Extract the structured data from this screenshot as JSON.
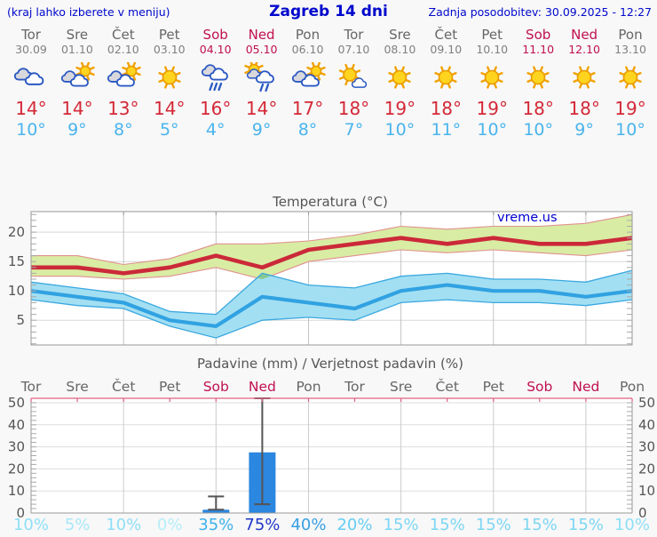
{
  "header": {
    "left_note": "(kraj lahko izberete v meniju)",
    "title": "Zagreb 14 dni",
    "updated": "Zadnja posodobitev: 30.09.2025 - 12:27"
  },
  "watermark": "vreme.us",
  "colors": {
    "header_text": "#0008cc",
    "weekday_text": "#666666",
    "weekend_text": "#c01050",
    "high_temp": "#d42837",
    "low_temp": "#4ab4ec",
    "max_line": "#cb2939",
    "min_line": "#31a2e2",
    "max_band": "#d9eca3",
    "max_band_edge": "#e09090",
    "min_band": "#a3dff2",
    "min_band_edge": "#3aa8e0",
    "band_overlap": "#85ca90",
    "bar": "#2b87e0",
    "whisker": "#555555",
    "top_border_pink": "#e0607f"
  },
  "days": [
    {
      "name": "Tor",
      "date": "30.09",
      "weekend": false,
      "icon": "cloudy",
      "high": 14,
      "low": 10
    },
    {
      "name": "Sre",
      "date": "01.10",
      "weekend": false,
      "icon": "sun-cloud",
      "high": 14,
      "low": 9
    },
    {
      "name": "Čet",
      "date": "02.10",
      "weekend": false,
      "icon": "sun-cloud",
      "high": 13,
      "low": 8
    },
    {
      "name": "Pet",
      "date": "03.10",
      "weekend": false,
      "icon": "sun",
      "high": 14,
      "low": 5
    },
    {
      "name": "Sob",
      "date": "04.10",
      "weekend": true,
      "icon": "rain",
      "high": 16,
      "low": 4
    },
    {
      "name": "Ned",
      "date": "05.10",
      "weekend": true,
      "icon": "sun-rain",
      "high": 14,
      "low": 9
    },
    {
      "name": "Pon",
      "date": "06.10",
      "weekend": false,
      "icon": "sun-cloud",
      "high": 17,
      "low": 8
    },
    {
      "name": "Tor",
      "date": "07.10",
      "weekend": false,
      "icon": "sun-small-cloud",
      "high": 18,
      "low": 7
    },
    {
      "name": "Sre",
      "date": "08.10",
      "weekend": false,
      "icon": "sun",
      "high": 19,
      "low": 10
    },
    {
      "name": "Čet",
      "date": "09.10",
      "weekend": false,
      "icon": "sun",
      "high": 18,
      "low": 11
    },
    {
      "name": "Pet",
      "date": "10.10",
      "weekend": false,
      "icon": "sun",
      "high": 19,
      "low": 10
    },
    {
      "name": "Sob",
      "date": "11.10",
      "weekend": true,
      "icon": "sun",
      "high": 18,
      "low": 10
    },
    {
      "name": "Ned",
      "date": "12.10",
      "weekend": true,
      "icon": "sun",
      "high": 18,
      "low": 9
    },
    {
      "name": "Pon",
      "date": "13.10",
      "weekend": false,
      "icon": "sun",
      "high": 19,
      "low": 10
    }
  ],
  "chart_data": [
    {
      "type": "area",
      "title": "Temperatura (°C)",
      "categories": [
        "30.09",
        "01.10",
        "02.10",
        "03.10",
        "04.10",
        "05.10",
        "06.10",
        "07.10",
        "08.10",
        "09.10",
        "10.10",
        "11.10",
        "12.10",
        "13.10"
      ],
      "ylim": [
        0.8,
        23.5
      ],
      "yticks": [
        5,
        10,
        15,
        20
      ],
      "grid": true,
      "series": [
        {
          "name": "max",
          "values": [
            14,
            14,
            13,
            14,
            16,
            14,
            17,
            18,
            19,
            18,
            19,
            18,
            18,
            19
          ]
        },
        {
          "name": "max_range_upper",
          "values": [
            16,
            16,
            14.5,
            15.5,
            18,
            18,
            18.5,
            19.5,
            21,
            20.5,
            21,
            21,
            21.5,
            23
          ]
        },
        {
          "name": "max_range_lower",
          "values": [
            12.5,
            12.5,
            12,
            12.5,
            14,
            12,
            15,
            16,
            17,
            16.5,
            17,
            16.5,
            16,
            17
          ]
        },
        {
          "name": "min",
          "values": [
            10,
            9,
            8,
            5,
            4,
            9,
            8,
            7,
            10,
            11,
            10,
            10,
            9,
            10
          ]
        },
        {
          "name": "min_range_upper",
          "values": [
            11.5,
            10.5,
            9.5,
            6.5,
            6,
            13,
            11,
            10.5,
            12.5,
            13,
            12,
            12,
            11.5,
            13.5
          ]
        },
        {
          "name": "min_range_lower",
          "values": [
            8.5,
            7.5,
            7,
            4,
            2,
            5,
            5.5,
            5,
            8,
            8.5,
            8,
            8,
            7.5,
            8.5
          ]
        }
      ]
    },
    {
      "type": "bar",
      "title": "Padavine (mm) / Verjetnost padavin (%)",
      "categories": [
        "Tor",
        "Sre",
        "Čet",
        "Pet",
        "Sob",
        "Ned",
        "Pon",
        "Tor",
        "Sre",
        "Čet",
        "Pet",
        "Sob",
        "Ned",
        "Pon"
      ],
      "weekend": [
        false,
        false,
        false,
        false,
        true,
        true,
        false,
        false,
        false,
        false,
        false,
        true,
        true,
        false
      ],
      "values": [
        0,
        0,
        0,
        0,
        1.5,
        27.5,
        0,
        0,
        0,
        0,
        0,
        0,
        0,
        0
      ],
      "whiskers": [
        {
          "index": 4,
          "low": 1.5,
          "high": 7.5
        },
        {
          "index": 5,
          "low": 4,
          "high": 52
        }
      ],
      "probabilities": [
        {
          "label": "10%",
          "color": "#8edff6"
        },
        {
          "label": "5%",
          "color": "#a6e8f8"
        },
        {
          "label": "10%",
          "color": "#8edff6"
        },
        {
          "label": "0%",
          "color": "#b5eefa"
        },
        {
          "label": "35%",
          "color": "#3fb0ea"
        },
        {
          "label": "75%",
          "color": "#2038c8"
        },
        {
          "label": "40%",
          "color": "#38a0e4"
        },
        {
          "label": "20%",
          "color": "#66cdf2"
        },
        {
          "label": "15%",
          "color": "#7cd6f4"
        },
        {
          "label": "15%",
          "color": "#7cd6f4"
        },
        {
          "label": "15%",
          "color": "#7cd6f4"
        },
        {
          "label": "15%",
          "color": "#7cd6f4"
        },
        {
          "label": "15%",
          "color": "#7cd6f4"
        },
        {
          "label": "10%",
          "color": "#8edff6"
        }
      ],
      "ylim": [
        0,
        52
      ],
      "yticks": [
        0,
        10,
        20,
        30,
        40,
        50
      ]
    }
  ]
}
